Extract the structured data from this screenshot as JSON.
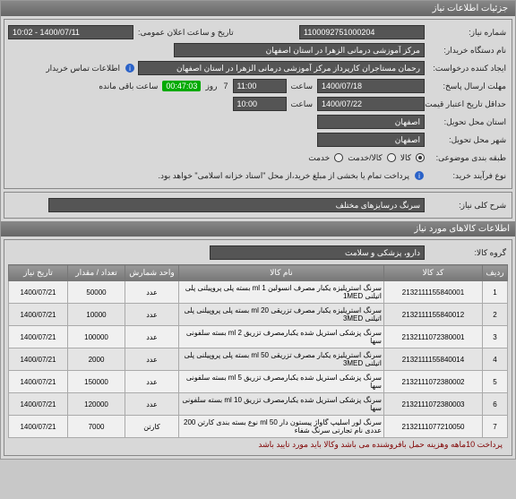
{
  "header": {
    "title": "جزئیات اطلاعات نیاز"
  },
  "fields": {
    "need_number": {
      "label": "شماره نیاز:",
      "value": "1100092751000204"
    },
    "general_announce": {
      "label": "تاریخ و ساعت اعلان عمومی:",
      "value": "1400/07/11 - 10:02"
    },
    "buyer_org": {
      "label": "نام دستگاه خریدار:",
      "value": "مرکز آموزشی درمانی الزهرا در استان اصفهان"
    },
    "requester": {
      "label": "ایجاد کننده درخواست:",
      "value": "رحمان مستاجران کارپرداز مرکز آموزشی درمانی الزهرا در استان اصفهان"
    },
    "buyer_contact": "اطلاعات تماس خریدار",
    "reply_deadline": {
      "label": "مهلت ارسال پاسخ:",
      "date": "1400/07/18",
      "time_label": "ساعت",
      "time": "11:00",
      "days_label": "روز",
      "days": "7",
      "remain_label": "ساعت باقی مانده",
      "remain": "00:47:03"
    },
    "validity": {
      "label": "حداقل تاریخ اعتبار قیمت تا تاریخ:",
      "date": "1400/07/22",
      "time_label": "ساعت",
      "time": "10:00"
    },
    "delivery_province": {
      "label": "استان محل تحویل:",
      "value": "اصفهان"
    },
    "delivery_city": {
      "label": "شهر محل تحویل:",
      "value": "اصفهان"
    },
    "subject_category": {
      "label": "طبقه بندی موضوعی:",
      "opts": [
        "کالا",
        "کالا/خدمت",
        "خدمت"
      ],
      "selected": 0
    },
    "process_type": {
      "label": "نوع فرآیند خرید:",
      "note": "پرداخت تمام یا بخشی از مبلغ خرید،از محل \"اسناد خزانه اسلامی\" خواهد بود."
    }
  },
  "desc": {
    "label": "شرح کلی نیاز:",
    "value": "سرنگ درسایزهای مختلف"
  },
  "items_section": {
    "title": "اطلاعات کالاهای مورد نیاز",
    "group_label": "گروه کالا:",
    "group_value": "دارو، پزشکی و سلامت"
  },
  "table": {
    "columns": [
      "ردیف",
      "کد کالا",
      "نام کالا",
      "واحد شمارش",
      "تعداد / مقدار",
      "تاریخ نیاز"
    ],
    "rows": [
      [
        "1",
        "2132111155840001",
        "سرنگ استریلیزه یکبار مصرف انسولین 1 ml بسته پلی پروپیلنی پلی اتیلنی 1MED",
        "عدد",
        "50000",
        "1400/07/21"
      ],
      [
        "2",
        "2132111155840012",
        "سرنگ استریلیزه یکبار مصرف تزریقی 20 ml بسته پلی پروپیلنی پلی اتیلنی 3MED",
        "عدد",
        "10000",
        "1400/07/21"
      ],
      [
        "3",
        "2132111072380001",
        "سرنگ پزشکی استریل شده یکبارمصرف تزریق 2 ml بسته سلفونی سها",
        "عدد",
        "100000",
        "1400/07/21"
      ],
      [
        "4",
        "2132111155840014",
        "سرنگ استریلیزه یکبار مصرف تزریقی 50 ml بسته پلی پروپیلنی پلی اتیلنی 3MED",
        "عدد",
        "2000",
        "1400/07/21"
      ],
      [
        "5",
        "2132111072380002",
        "سرنگ پزشکی استریل شده یکبارمصرف تزریق 5 ml بسته سلفونی سها",
        "عدد",
        "150000",
        "1400/07/21"
      ],
      [
        "6",
        "2132111072380003",
        "سرنگ پزشکی استریل شده یکبارمصرف تزریق 10 ml بسته سلفونی سها",
        "عدد",
        "120000",
        "1400/07/21"
      ],
      [
        "7",
        "2132111077210050",
        "سرنگ لور اسلیپ گاواژ پیستون دار 50 ml نوع بسته بندی کارتن 200 عددی نام تجارتی سرنگ شفاء",
        "کارتن",
        "7000",
        "1400/07/21"
      ]
    ],
    "col_widths": [
      "28px",
      "110px",
      "auto",
      "60px",
      "64px",
      "66px"
    ]
  },
  "footer_note": "پرداخت 10ماهه وهزینه حمل بافروشنده می باشد وکالا باید مورد تایید باشد"
}
